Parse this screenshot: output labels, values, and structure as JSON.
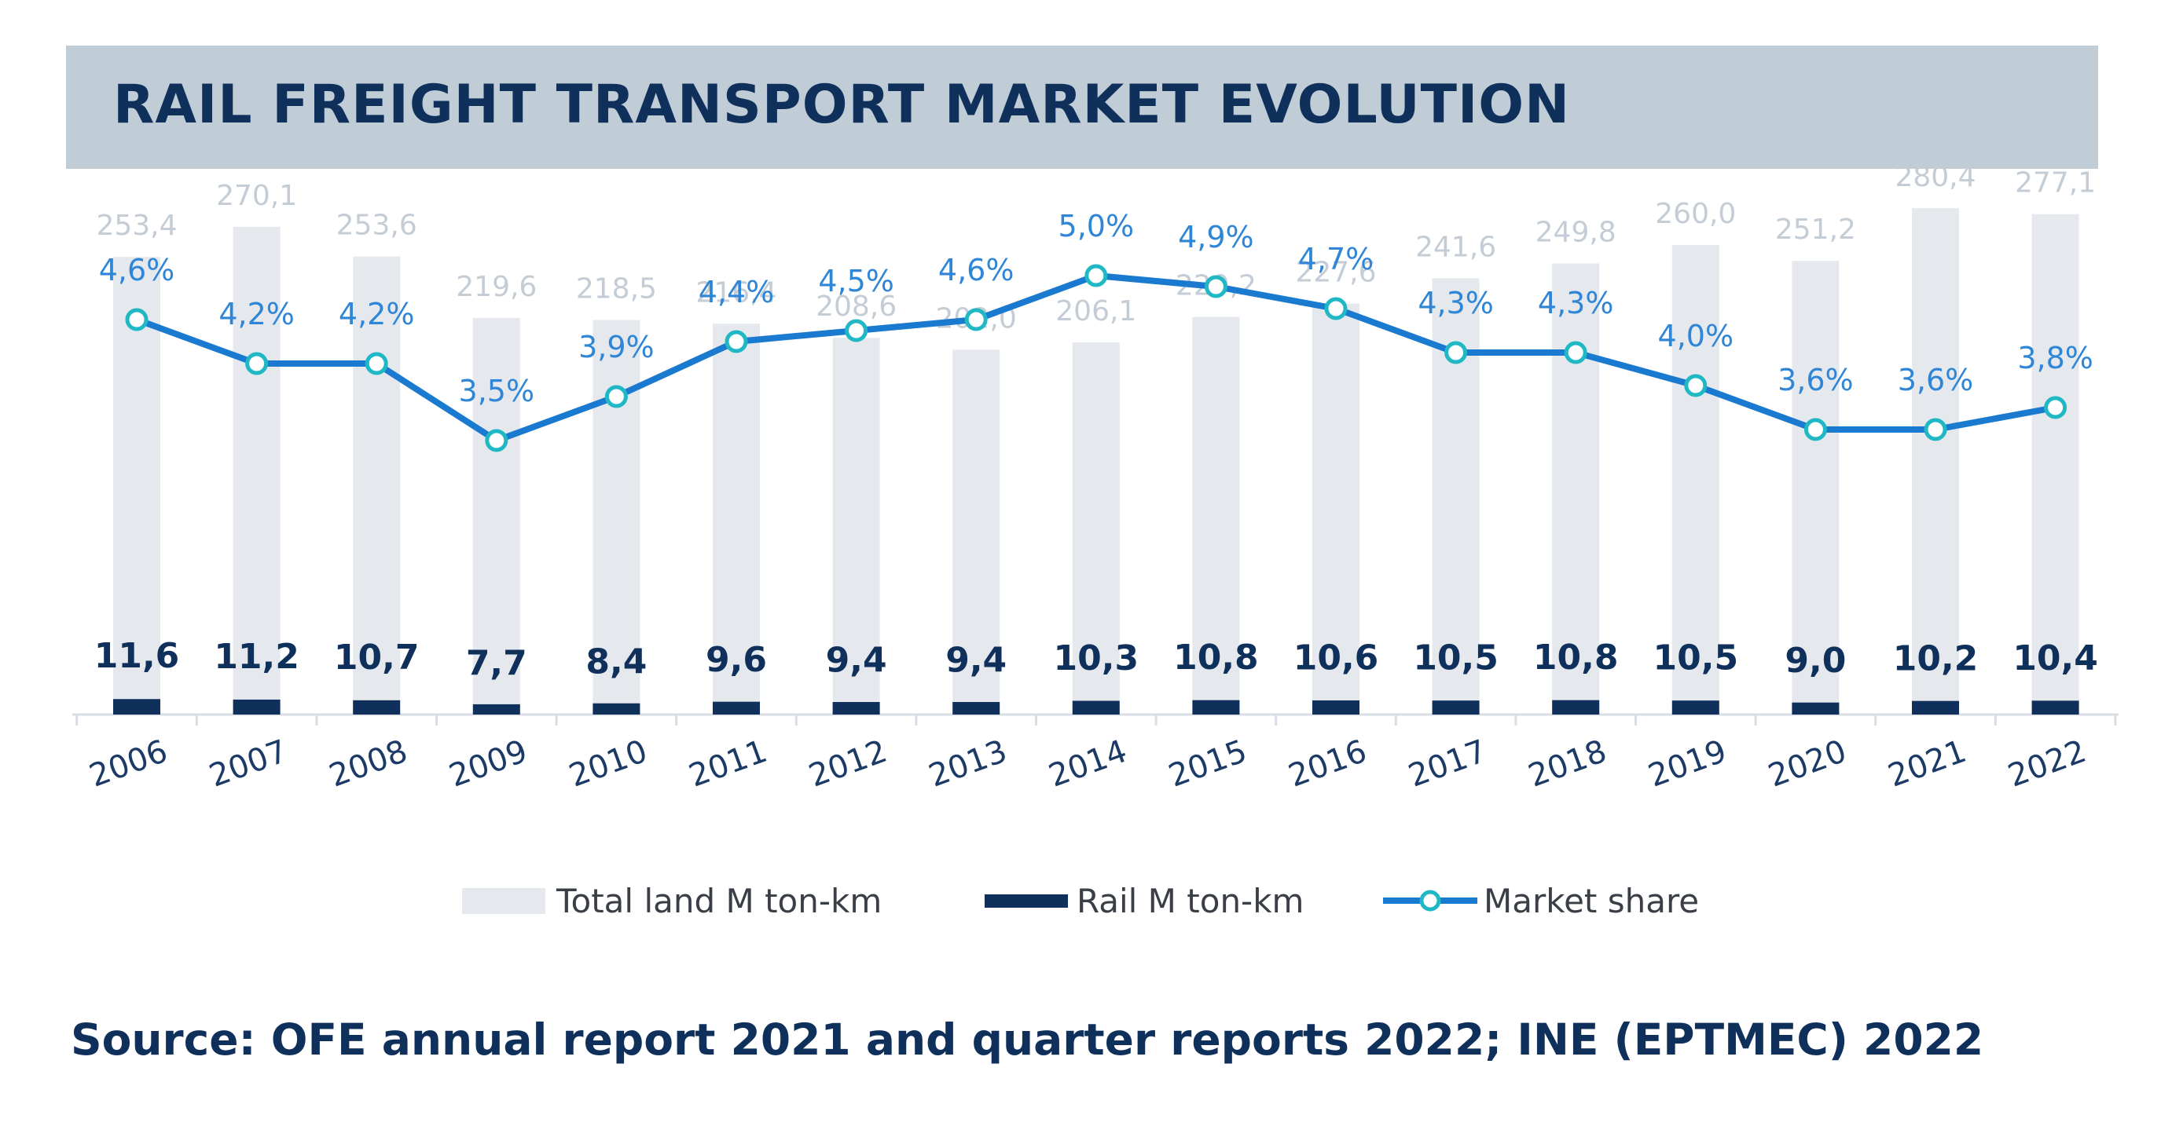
{
  "header": {
    "title": "RAIL FREIGHT TRANSPORT MARKET EVOLUTION"
  },
  "colors": {
    "total": "#e5e9ee",
    "rail": "#10305c",
    "share": "#1a7ad0",
    "header_bg": "#c0ccd6"
  },
  "chart_data": {
    "type": "bar",
    "title": "RAIL FREIGHT TRANSPORT MARKET EVOLUTION",
    "categories": [
      "2006",
      "2007",
      "2008",
      "2009",
      "2010",
      "2011",
      "2012",
      "2013",
      "2014",
      "2015",
      "2016",
      "2017",
      "2018",
      "2019",
      "2020",
      "2021",
      "2022"
    ],
    "series": [
      {
        "name": "Total land M ton-km",
        "type": "bar",
        "values": [
          253.4,
          270.1,
          253.6,
          219.6,
          218.5,
          216.4,
          208.6,
          202.0,
          206.1,
          220.2,
          227.6,
          241.6,
          249.8,
          260.0,
          251.2,
          280.4,
          277.1
        ],
        "labels": [
          "253,4",
          "270,1",
          "253,6",
          "219,6",
          "218,5",
          "216,4",
          "208,6",
          "202,0",
          "206,1",
          "220,2",
          "227,6",
          "241,6",
          "249,8",
          "260,0",
          "251,2",
          "280,4",
          "277,1"
        ]
      },
      {
        "name": "Rail M ton-km",
        "type": "bar",
        "values": [
          11.6,
          11.2,
          10.7,
          7.7,
          8.4,
          9.6,
          9.4,
          9.4,
          10.3,
          10.8,
          10.6,
          10.5,
          10.8,
          10.5,
          9.0,
          10.2,
          10.4
        ],
        "labels": [
          "11,6",
          "11,2",
          "10,7",
          "7,7",
          "8,4",
          "9,6",
          "9,4",
          "9,4",
          "10,3",
          "10,8",
          "10,6",
          "10,5",
          "10,8",
          "10,5",
          "9,0",
          "10,2",
          "10,4"
        ]
      },
      {
        "name": "Market share",
        "type": "line",
        "unit": "%",
        "values": [
          4.6,
          4.2,
          4.2,
          3.5,
          3.9,
          4.4,
          4.5,
          4.6,
          5.0,
          4.9,
          4.7,
          4.3,
          4.3,
          4.0,
          3.6,
          3.6,
          3.8
        ],
        "labels": [
          "4,6%",
          "4,2%",
          "4,2%",
          "3,5%",
          "3,9%",
          "4,4%",
          "4,5%",
          "4,6%",
          "5,0%",
          "4,9%",
          "4,7%",
          "4,3%",
          "4,3%",
          "4,0%",
          "3,6%",
          "3,6%",
          "3,8%"
        ]
      }
    ],
    "legend": [
      "Total land M ton-km",
      "Rail M ton-km",
      "Market share"
    ],
    "legend_position": "bottom",
    "grid": false
  },
  "footer": {
    "source": "Source: OFE annual report 2021 and quarter reports 2022; INE (EPTMEC) 2022"
  }
}
